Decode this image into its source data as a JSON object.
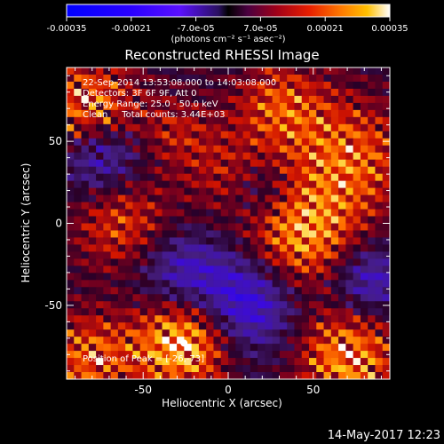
{
  "chart_data": {
    "type": "heatmap",
    "title": "Reconstructed RHESSI Image",
    "xlabel": "Heliocentric X (arcsec)",
    "ylabel": "Heliocentric Y (arcsec)",
    "xlim": [
      -95,
      95
    ],
    "ylim": [
      -95,
      95
    ],
    "x_ticks": [
      -50,
      0,
      50
    ],
    "y_ticks": [
      -50,
      0,
      50
    ],
    "grid": false,
    "colorbar": {
      "range": [
        -0.00035,
        0.00035
      ],
      "tick_values": [
        -0.00035,
        -0.00021,
        -7e-05,
        7e-05,
        0.00021,
        0.00035
      ],
      "tick_labels": [
        "-0.00035",
        "-0.00021",
        "-7.0e-05",
        "7.0e-05",
        "0.00021",
        "0.00035"
      ],
      "unit_label": "(photons cm⁻² s⁻¹ asec⁻²)"
    },
    "annotations": [
      "22-Sep-2014 13:53:08.000 to 14:03:08.000",
      "Detectors: 3F 6F 9F, Att 0",
      "Energy Range: 25.0 - 50.0 keV",
      "Clean     Total counts: 3.44E+03"
    ],
    "peak": {
      "label": "Position of Peak = [-26,-73]",
      "x": -26,
      "y": -73
    },
    "sources": [
      {
        "x": -82,
        "y": 68,
        "amp": 1.0,
        "sigma": 22
      },
      {
        "x": -26,
        "y": -73,
        "amp": 1.25,
        "sigma": 20
      },
      {
        "x": 42,
        "y": -8,
        "amp": 1.0,
        "sigma": 24
      },
      {
        "x": 72,
        "y": 40,
        "amp": 0.8,
        "sigma": 26
      },
      {
        "x": -62,
        "y": 0,
        "amp": 0.7,
        "sigma": 22
      },
      {
        "x": 30,
        "y": 72,
        "amp": 0.7,
        "sigma": 20
      },
      {
        "x": 70,
        "y": -82,
        "amp": 1.0,
        "sigma": 22
      },
      {
        "x": -82,
        "y": -82,
        "amp": 0.8,
        "sigma": 20
      },
      {
        "x": 0,
        "y": 30,
        "amp": 0.45,
        "sigma": 18
      },
      {
        "x": -30,
        "y": 55,
        "amp": 0.45,
        "sigma": 16
      }
    ],
    "negatives": [
      {
        "x": -75,
        "y": 42,
        "amp": 0.7,
        "sigma": 18
      },
      {
        "x": 10,
        "y": -48,
        "amp": 0.7,
        "sigma": 22
      },
      {
        "x": 82,
        "y": -35,
        "amp": 0.55,
        "sigma": 16
      },
      {
        "x": -30,
        "y": -28,
        "amp": 0.45,
        "sigma": 18
      },
      {
        "x": 20,
        "y": 20,
        "amp": 0.4,
        "sigma": 14
      }
    ]
  },
  "footer": {
    "timestamp": "14-May-2017 12:23"
  }
}
